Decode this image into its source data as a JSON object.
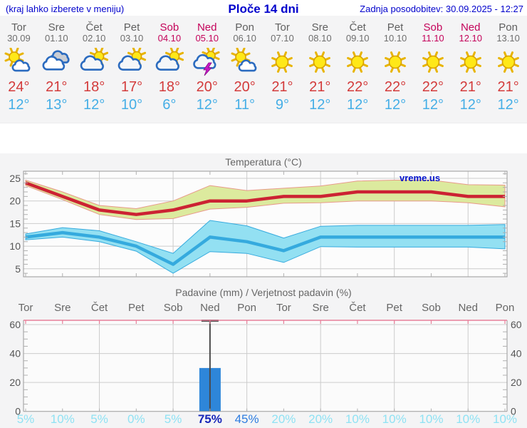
{
  "header": {
    "note": "(kraj lahko izberete v meniju)",
    "title": "Ploče 14 dni",
    "updated": "Zadnja posodobitev: 30.09.2025 - 12:27"
  },
  "days": [
    {
      "name": "Tor",
      "date": "30.09",
      "weekend": false,
      "icon": "sun-cloud",
      "high": "24°",
      "low": "12°"
    },
    {
      "name": "Sre",
      "date": "01.10",
      "weekend": false,
      "icon": "cloudy",
      "high": "21°",
      "low": "13°"
    },
    {
      "name": "Čet",
      "date": "02.10",
      "weekend": false,
      "icon": "cloud-sun",
      "high": "18°",
      "low": "12°"
    },
    {
      "name": "Pet",
      "date": "03.10",
      "weekend": false,
      "icon": "cloud-sun",
      "high": "17°",
      "low": "10°"
    },
    {
      "name": "Sob",
      "date": "04.10",
      "weekend": true,
      "icon": "cloud-sun",
      "high": "18°",
      "low": "6°"
    },
    {
      "name": "Ned",
      "date": "05.10",
      "weekend": true,
      "icon": "storm",
      "high": "20°",
      "low": "12°"
    },
    {
      "name": "Pon",
      "date": "06.10",
      "weekend": false,
      "icon": "sun-cloud",
      "high": "20°",
      "low": "11°"
    },
    {
      "name": "Tor",
      "date": "07.10",
      "weekend": false,
      "icon": "sunny",
      "high": "21°",
      "low": "9°"
    },
    {
      "name": "Sre",
      "date": "08.10",
      "weekend": false,
      "icon": "sunny",
      "high": "21°",
      "low": "12°"
    },
    {
      "name": "Čet",
      "date": "09.10",
      "weekend": false,
      "icon": "sunny",
      "high": "22°",
      "low": "12°"
    },
    {
      "name": "Pet",
      "date": "10.10",
      "weekend": false,
      "icon": "sunny",
      "high": "22°",
      "low": "12°"
    },
    {
      "name": "Sob",
      "date": "11.10",
      "weekend": true,
      "icon": "sunny",
      "high": "22°",
      "low": "12°"
    },
    {
      "name": "Ned",
      "date": "12.10",
      "weekend": true,
      "icon": "sunny",
      "high": "21°",
      "low": "12°"
    },
    {
      "name": "Pon",
      "date": "13.10",
      "weekend": false,
      "icon": "sunny",
      "high": "21°",
      "low": "12°"
    }
  ],
  "chart_data": [
    {
      "type": "line",
      "title": "Temperatura (°C)",
      "watermark": "vreme.us",
      "categories": [
        "Tor",
        "Sre",
        "Čet",
        "Pet",
        "Sob",
        "Ned",
        "Pon",
        "Tor",
        "Sre",
        "Čet",
        "Pet",
        "Sob",
        "Ned",
        "Pon"
      ],
      "yticks": [
        5,
        10,
        15,
        20,
        25
      ],
      "ylim": [
        3.2,
        26.6
      ],
      "grid": "on",
      "legend": "none",
      "series": [
        {
          "name": "max-temp",
          "color": "#cc2233",
          "values": [
            24,
            21,
            18,
            17,
            18,
            20,
            20,
            21,
            21,
            22,
            22,
            22,
            21,
            21
          ]
        },
        {
          "name": "max-band-upper",
          "values": [
            24.6,
            22,
            19,
            18.3,
            20,
            23.4,
            22.3,
            22.8,
            23.3,
            24.4,
            24.6,
            24.6,
            23.6,
            23.5
          ]
        },
        {
          "name": "max-band-lower",
          "values": [
            23.4,
            20.3,
            17,
            15.9,
            16.1,
            18.2,
            18.6,
            19.5,
            19.6,
            20,
            20,
            20,
            19.6,
            18.7
          ]
        },
        {
          "name": "min-temp",
          "color": "#35aade",
          "values": [
            12,
            13,
            12,
            10,
            6,
            12,
            11,
            9,
            12,
            12,
            12,
            12,
            12,
            12
          ]
        },
        {
          "name": "min-band-upper",
          "values": [
            12.7,
            14.1,
            13.4,
            11,
            8.4,
            15.7,
            14.5,
            11.8,
            14.4,
            14.6,
            14.6,
            14.6,
            14.6,
            14.8
          ]
        },
        {
          "name": "min-band-lower",
          "values": [
            11.4,
            12,
            11,
            8.9,
            4,
            8.8,
            8.4,
            6.4,
            9.9,
            9.8,
            9.8,
            9.8,
            9.8,
            9.4
          ]
        }
      ]
    },
    {
      "type": "bar",
      "title": "Padavine (mm) / Verjetnost padavin (%)",
      "categories": [
        "Tor",
        "Sre",
        "Čet",
        "Pet",
        "Sob",
        "Ned",
        "Pon",
        "Tor",
        "Sre",
        "Čet",
        "Pet",
        "Sob",
        "Ned",
        "Pon"
      ],
      "weekend_flags": [
        false,
        false,
        false,
        false,
        true,
        true,
        false,
        false,
        false,
        false,
        false,
        true,
        true,
        false
      ],
      "yticks": [
        0,
        20,
        40,
        60
      ],
      "ylim": [
        0,
        63
      ],
      "values_mm": [
        0,
        0,
        0,
        0,
        0,
        30,
        0,
        0,
        0,
        0,
        0,
        0,
        0,
        0
      ],
      "whisker": {
        "index": 5,
        "low": 0,
        "high": 63
      },
      "probabilities": [
        "5%",
        "10%",
        "5%",
        "0%",
        "5%",
        "75%",
        "45%",
        "20%",
        "20%",
        "10%",
        "10%",
        "10%",
        "10%",
        "10%"
      ],
      "probability_emphasis": [
        "low",
        "low",
        "low",
        "low",
        "low",
        "high",
        "mid",
        "low",
        "low",
        "low",
        "low",
        "low",
        "low",
        "low"
      ]
    }
  ],
  "colors": {
    "header_blue": "#0202cc",
    "weekend": "#c4035a",
    "day_gray": "#606060",
    "high_red": "#d33b3b",
    "low_blue": "#45aee6",
    "line_red": "#cc2233",
    "band_yellow": "#dcea9e",
    "band_edge_pink": "#e89a8a",
    "line_blue": "#35aade",
    "band_cyan": "#93e0f2",
    "bar_blue": "#2e86d9",
    "prob_light": "#8fe2f4",
    "prob_mid": "#2e7de0",
    "prob_high": "#1626b8",
    "grid": "#cccccc",
    "frame": "#999999",
    "top_axis_pink": "#e87f9a"
  }
}
